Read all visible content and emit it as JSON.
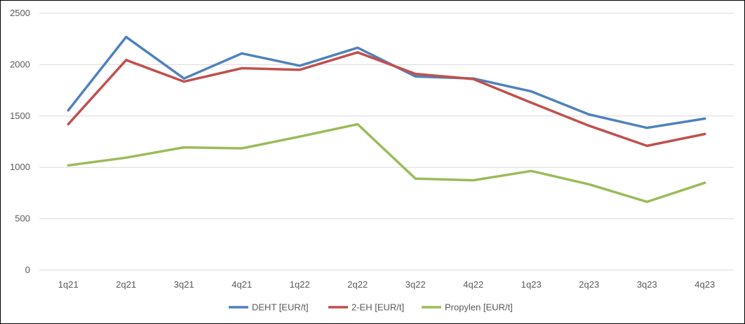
{
  "chart_data": {
    "type": "line",
    "title": "",
    "xlabel": "",
    "ylabel": "",
    "categories": [
      "1q21",
      "2q21",
      "3q21",
      "4q21",
      "1q22",
      "2q22",
      "3q22",
      "4q22",
      "1q23",
      "2q23",
      "3q23",
      "4q23"
    ],
    "ylim": [
      0,
      2500
    ],
    "yticks": [
      0,
      500,
      1000,
      1500,
      2000,
      2500
    ],
    "grid": true,
    "legend_position": "bottom",
    "series": [
      {
        "name": "DEHT [EUR/t]",
        "color": "#4F81BD",
        "values": [
          1555,
          2270,
          1865,
          2110,
          1990,
          2165,
          1885,
          1865,
          1740,
          1515,
          1385,
          1475
        ]
      },
      {
        "name": "2-EH [EUR/t]",
        "color": "#C0504D",
        "values": [
          1420,
          2045,
          1835,
          1965,
          1950,
          2120,
          1910,
          1860,
          1630,
          1405,
          1210,
          1325
        ]
      },
      {
        "name": "Propylen [EUR/t]",
        "color": "#9BBB59",
        "values": [
          1020,
          1095,
          1195,
          1185,
          1300,
          1420,
          890,
          875,
          965,
          835,
          665,
          850
        ]
      }
    ]
  }
}
